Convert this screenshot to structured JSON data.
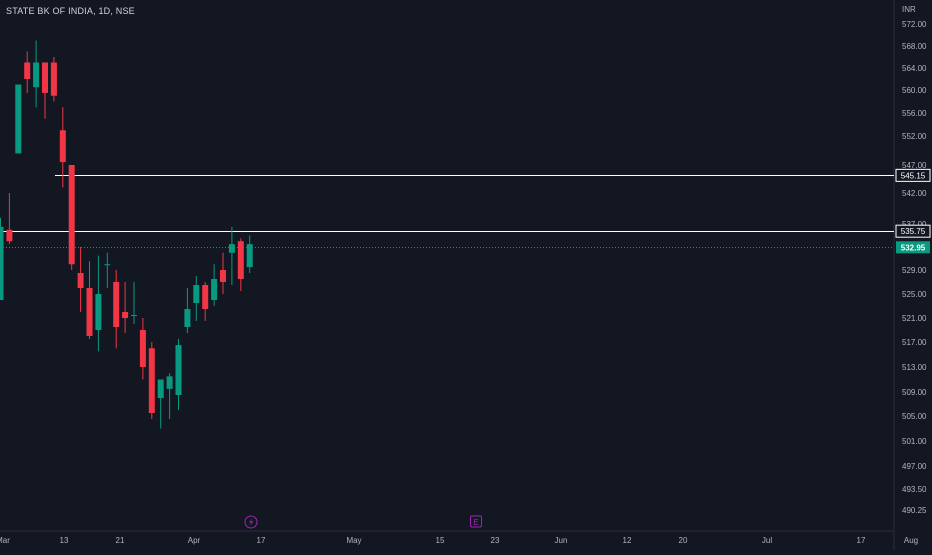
{
  "header": {
    "symbol_title": "STATE BK OF INDIA, 1D, NSE",
    "currency": "INR"
  },
  "chart_data": {
    "type": "candlestick",
    "title": "STATE BK OF INDIA, 1D, NSE",
    "y_axis": {
      "unit": "INR",
      "ticks": [
        "572.00",
        "568.00",
        "564.00",
        "560.00",
        "556.00",
        "552.00",
        "547.00",
        "542.00",
        "537.00",
        "529.00",
        "525.00",
        "521.00",
        "517.00",
        "513.00",
        "509.00",
        "505.00",
        "501.00",
        "497.00",
        "493.50",
        "490.25"
      ]
    },
    "x_axis": {
      "ticks": [
        "Mar",
        "13",
        "21",
        "Apr",
        "17",
        "May",
        "15",
        "23",
        "Jun",
        "12",
        "20",
        "Jul",
        "17",
        "Aug"
      ]
    },
    "horizontal_lines": [
      {
        "value": 545.15,
        "label": "545.15",
        "color": "#ffffff"
      },
      {
        "value": 535.75,
        "label": "535.75",
        "color": "#ffffff"
      }
    ],
    "last_price": {
      "value": 532.95,
      "label": "532.95",
      "color": "#089981"
    },
    "candles": [
      {
        "o": 524.0,
        "h": 538.0,
        "l": 524.0,
        "c": 536.5
      },
      {
        "o": 536.0,
        "h": 542.0,
        "l": 533.5,
        "c": 534.0
      },
      {
        "o": 549.0,
        "h": 561.0,
        "l": 549.0,
        "c": 561.0
      },
      {
        "o": 565.0,
        "h": 567.0,
        "l": 559.5,
        "c": 562.0
      },
      {
        "o": 560.5,
        "h": 569.0,
        "l": 557.0,
        "c": 565.0
      },
      {
        "o": 565.0,
        "h": 565.0,
        "l": 555.0,
        "c": 559.5
      },
      {
        "o": 565.0,
        "h": 566.0,
        "l": 558.0,
        "c": 559.0
      },
      {
        "o": 553.0,
        "h": 557.0,
        "l": 543.0,
        "c": 547.5
      },
      {
        "o": 547.0,
        "h": 547.0,
        "l": 529.0,
        "c": 530.0
      },
      {
        "o": 528.5,
        "h": 533.0,
        "l": 522.0,
        "c": 526.0
      },
      {
        "o": 526.0,
        "h": 530.5,
        "l": 517.5,
        "c": 518.0
      },
      {
        "o": 519.0,
        "h": 531.5,
        "l": 515.5,
        "c": 525.0
      },
      {
        "o": 530.0,
        "h": 532.0,
        "l": 526.0,
        "c": 530.0
      },
      {
        "o": 527.0,
        "h": 529.0,
        "l": 516.0,
        "c": 519.5
      },
      {
        "o": 522.0,
        "h": 527.0,
        "l": 518.5,
        "c": 521.0
      },
      {
        "o": 521.5,
        "h": 527.0,
        "l": 520.0,
        "c": 521.5
      },
      {
        "o": 519.0,
        "h": 521.0,
        "l": 511.0,
        "c": 513.0
      },
      {
        "o": 516.0,
        "h": 517.0,
        "l": 504.5,
        "c": 505.5
      },
      {
        "o": 508.0,
        "h": 511.0,
        "l": 503.0,
        "c": 511.0
      },
      {
        "o": 509.5,
        "h": 512.0,
        "l": 504.5,
        "c": 511.5
      },
      {
        "o": 508.5,
        "h": 517.5,
        "l": 506.0,
        "c": 516.5
      },
      {
        "o": 519.5,
        "h": 526.0,
        "l": 518.5,
        "c": 522.5
      },
      {
        "o": 523.5,
        "h": 528.0,
        "l": 520.5,
        "c": 526.5
      },
      {
        "o": 526.5,
        "h": 527.0,
        "l": 520.5,
        "c": 522.5
      },
      {
        "o": 524.0,
        "h": 530.0,
        "l": 523.0,
        "c": 527.5
      },
      {
        "o": 529.0,
        "h": 532.0,
        "l": 525.0,
        "c": 527.0
      },
      {
        "o": 532.0,
        "h": 536.5,
        "l": 526.5,
        "c": 533.5
      },
      {
        "o": 534.0,
        "h": 534.5,
        "l": 525.5,
        "c": 527.5
      },
      {
        "o": 529.5,
        "h": 535.0,
        "l": 528.5,
        "c": 533.5
      }
    ],
    "colors": {
      "up": "#089981",
      "down": "#f23645",
      "background": "#131722",
      "axis_text": "#b2b5be",
      "price_line": "#089981"
    },
    "events": [
      {
        "icon": "lightning-icon",
        "color": "#9c27b0"
      },
      {
        "icon": "earnings-icon",
        "glyph": "E",
        "color": "#9c27b0"
      }
    ]
  }
}
